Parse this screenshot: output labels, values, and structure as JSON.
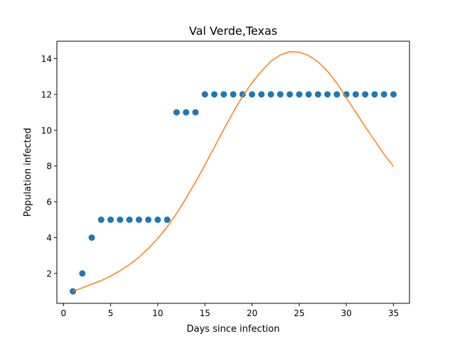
{
  "chart_data": {
    "type": "scatter",
    "title": "Val Verde,Texas",
    "xlabel": "Days since infection",
    "ylabel": "Population infected",
    "xlim": [
      -0.7,
      36.7
    ],
    "ylim": [
      0.33,
      14.97
    ],
    "xticks": [
      0,
      5,
      10,
      15,
      20,
      25,
      30,
      35
    ],
    "yticks": [
      2,
      4,
      6,
      8,
      10,
      12,
      14
    ],
    "grid": false,
    "series": [
      {
        "kind": "scatter",
        "color": "#1f77b4",
        "x": [
          1,
          2,
          3,
          4,
          5,
          6,
          7,
          8,
          9,
          10,
          11,
          12,
          13,
          14,
          15,
          16,
          17,
          18,
          19,
          20,
          21,
          22,
          23,
          24,
          25,
          26,
          27,
          28,
          29,
          30,
          31,
          32,
          33,
          34,
          35
        ],
        "y": [
          1,
          2,
          4,
          5,
          5,
          5,
          5,
          5,
          5,
          5,
          5,
          11,
          11,
          11,
          12,
          12,
          12,
          12,
          12,
          12,
          12,
          12,
          12,
          12,
          12,
          12,
          12,
          12,
          12,
          12,
          12,
          12,
          12,
          12,
          12
        ]
      },
      {
        "kind": "line",
        "color": "#ff7f0e",
        "x": [
          1,
          2,
          3,
          4,
          5,
          6,
          7,
          8,
          9,
          10,
          11,
          12,
          13,
          14,
          15,
          16,
          17,
          18,
          19,
          20,
          21,
          22,
          23,
          24,
          25,
          26,
          27,
          28,
          29,
          30,
          31,
          32,
          33,
          34,
          35
        ],
        "y": [
          1.0,
          1.2,
          1.4,
          1.6,
          1.85,
          2.15,
          2.5,
          2.9,
          3.4,
          3.95,
          4.6,
          5.35,
          6.2,
          7.1,
          8.05,
          9.05,
          10.05,
          11.0,
          11.9,
          12.65,
          13.3,
          13.85,
          14.2,
          14.38,
          14.36,
          14.17,
          13.82,
          13.3,
          12.62,
          11.82,
          11.0,
          10.2,
          9.42,
          8.66,
          7.98
        ]
      }
    ]
  }
}
